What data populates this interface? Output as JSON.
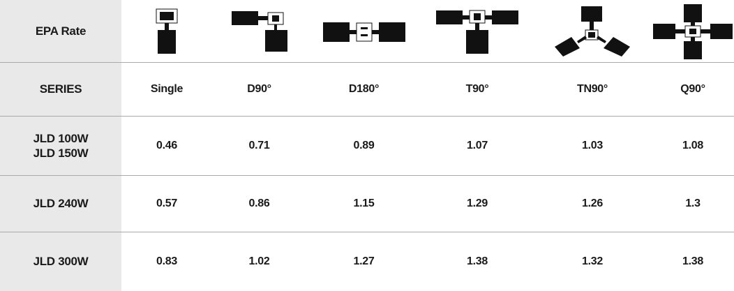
{
  "header": {
    "label": "EPA Rate",
    "icons": [
      "single-fixture-icon",
      "d90-fixture-icon",
      "d180-fixture-icon",
      "t90-fixture-icon",
      "tn90-fixture-icon",
      "q90-fixture-icon"
    ]
  },
  "series_row": {
    "label": "SERIES",
    "columns": [
      "Single",
      "D90°",
      "D180°",
      "T90°",
      "TN90°",
      "Q90°"
    ]
  },
  "rows": [
    {
      "series": [
        "JLD 100W",
        "JLD 150W"
      ],
      "values": [
        "0.46",
        "0.71",
        "0.89",
        "1.07",
        "1.03",
        "1.08"
      ]
    },
    {
      "series": [
        "JLD 240W"
      ],
      "values": [
        "0.57",
        "0.86",
        "1.15",
        "1.29",
        "1.26",
        "1.3"
      ]
    },
    {
      "series": [
        "JLD 300W"
      ],
      "values": [
        "0.83",
        "1.02",
        "1.27",
        "1.38",
        "1.32",
        "1.38"
      ]
    }
  ]
}
